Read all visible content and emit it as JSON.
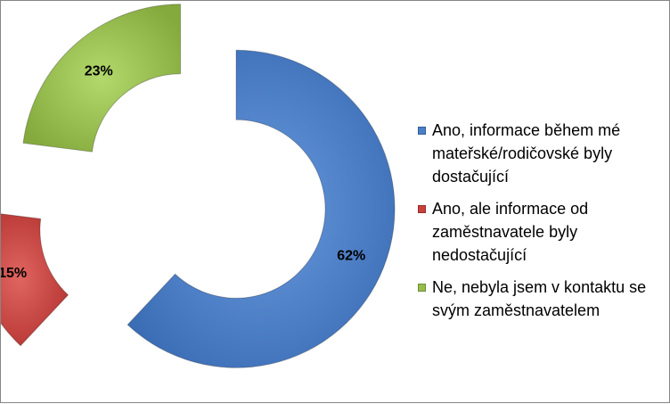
{
  "chart_data": {
    "type": "pie",
    "variant": "exploded-doughnut",
    "title": "",
    "categories": [
      "Ano, informace během mé mateřské/rodičovské byly dostačující",
      "Ano, ale informace od zaměstnavatele byly nedostačující",
      "Ne, nebyla jsem v kontaktu se svým zaměstnavatelem"
    ],
    "values": [
      62,
      15,
      23
    ],
    "data_labels": [
      "62%",
      "15%",
      "23%"
    ],
    "colors": [
      "#4a7fc9",
      "#c9403d",
      "#96bd4b"
    ],
    "legend_position": "right"
  }
}
